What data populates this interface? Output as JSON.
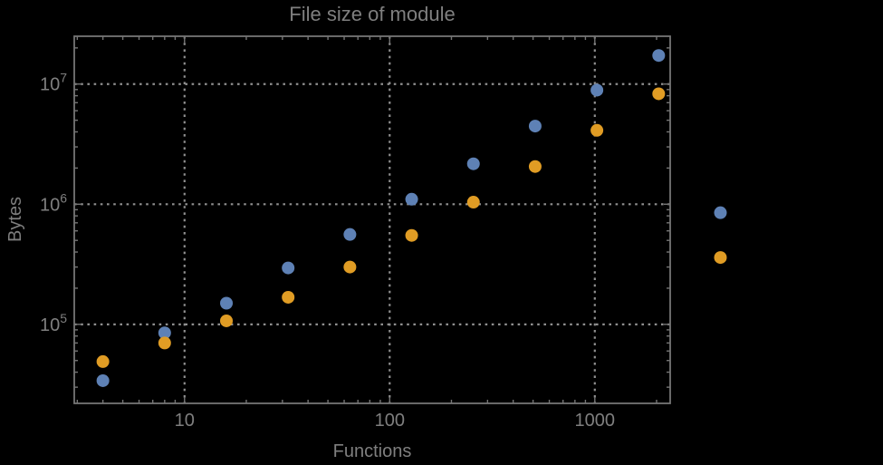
{
  "chart_data": {
    "type": "scatter",
    "title": "File size of module",
    "xlabel": "Functions",
    "ylabel": "Bytes",
    "xscale": "log",
    "yscale": "log",
    "xlim": [
      2.9,
      2330
    ],
    "ylim": [
      22000,
      25000000
    ],
    "grid": "dotted",
    "legend": "none",
    "xticks": [
      {
        "value": 10,
        "label": "10"
      },
      {
        "value": 100,
        "label": "100"
      },
      {
        "value": 1000,
        "label": "1000"
      }
    ],
    "yticks": [
      {
        "value": 100000,
        "base": "10",
        "exponent": "5"
      },
      {
        "value": 1000000,
        "base": "10",
        "exponent": "6"
      },
      {
        "value": 10000000,
        "base": "10",
        "exponent": "7"
      }
    ],
    "x": [
      4,
      8,
      16,
      32,
      64,
      128,
      256,
      512,
      1024,
      2048,
      4096
    ],
    "series": [
      {
        "name": "blue-series",
        "color": "#5e81b5",
        "values": [
          34000,
          85000,
          150000,
          295000,
          560000,
          1100000,
          2170000,
          4470000,
          8900000,
          17300000,
          850000
        ]
      },
      {
        "name": "orange-series",
        "color": "#e09c24",
        "values": [
          49000,
          70000,
          107000,
          168000,
          300000,
          550000,
          1040000,
          2060000,
          4120000,
          8300000,
          360000
        ]
      }
    ]
  },
  "colors": {
    "background": "#000000",
    "frame": "#757575",
    "grid": "#8f8f8f",
    "text": "#7f7f7f",
    "series_blue": "#5e81b5",
    "series_orange": "#e09c24"
  }
}
